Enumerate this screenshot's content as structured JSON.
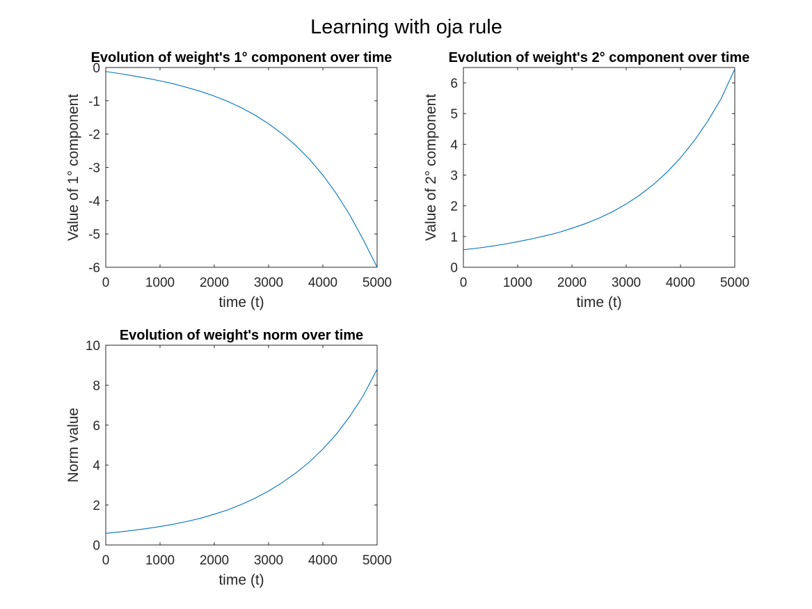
{
  "figure_title": "Learning with oja rule",
  "chart_data": [
    {
      "type": "line",
      "title": "Evolution of weight's 1° component over time",
      "xlabel": "time (t)",
      "ylabel": "Value of 1° component",
      "xlim": [
        0,
        5000
      ],
      "ylim": [
        -6,
        0
      ],
      "xticks": [
        0,
        1000,
        2000,
        3000,
        4000,
        5000
      ],
      "yticks": [
        0,
        -1,
        -2,
        -3,
        -4,
        -5,
        -6
      ],
      "grid": false,
      "series": [
        {
          "color": "#0072BD",
          "x": [
            0,
            250,
            500,
            750,
            1000,
            1250,
            1500,
            1750,
            2000,
            2250,
            2500,
            2750,
            3000,
            3250,
            3500,
            3750,
            4000,
            4250,
            4500,
            4750,
            5000
          ],
          "y": [
            -0.12,
            -0.18,
            -0.25,
            -0.32,
            -0.4,
            -0.49,
            -0.6,
            -0.72,
            -0.86,
            -1.02,
            -1.21,
            -1.43,
            -1.69,
            -1.99,
            -2.34,
            -2.75,
            -3.23,
            -3.79,
            -4.44,
            -5.19,
            -6.0
          ]
        }
      ]
    },
    {
      "type": "line",
      "title": "Evolution of weight's 2° component over time",
      "xlabel": "time (t)",
      "ylabel": "Value of 2° component",
      "xlim": [
        0,
        5000
      ],
      "ylim": [
        0,
        6.5
      ],
      "xticks": [
        0,
        1000,
        2000,
        3000,
        4000,
        5000
      ],
      "yticks": [
        0,
        1,
        2,
        3,
        4,
        5,
        6
      ],
      "grid": false,
      "series": [
        {
          "color": "#0072BD",
          "x": [
            0,
            250,
            500,
            750,
            1000,
            1250,
            1500,
            1750,
            2000,
            2250,
            2500,
            2750,
            3000,
            3250,
            3500,
            3750,
            4000,
            4250,
            4500,
            4750,
            5000
          ],
          "y": [
            0.57,
            0.62,
            0.68,
            0.75,
            0.83,
            0.92,
            1.02,
            1.13,
            1.27,
            1.42,
            1.6,
            1.81,
            2.06,
            2.35,
            2.69,
            3.09,
            3.56,
            4.11,
            4.75,
            5.49,
            6.45
          ]
        }
      ]
    },
    {
      "type": "line",
      "title": "Evolution of weight's norm over time",
      "xlabel": "time (t)",
      "ylabel": "Norm value",
      "xlim": [
        0,
        5000
      ],
      "ylim": [
        0,
        10
      ],
      "xticks": [
        0,
        1000,
        2000,
        3000,
        4000,
        5000
      ],
      "yticks": [
        0,
        2,
        4,
        6,
        8,
        10
      ],
      "grid": false,
      "series": [
        {
          "color": "#0072BD",
          "x": [
            0,
            250,
            500,
            750,
            1000,
            1250,
            1500,
            1750,
            2000,
            2250,
            2500,
            2750,
            3000,
            3250,
            3500,
            3750,
            4000,
            4250,
            4500,
            4750,
            5000
          ],
          "y": [
            0.58,
            0.65,
            0.73,
            0.82,
            0.92,
            1.04,
            1.18,
            1.34,
            1.54,
            1.76,
            2.03,
            2.34,
            2.7,
            3.12,
            3.6,
            4.15,
            4.8,
            5.55,
            6.45,
            7.5,
            8.8
          ]
        }
      ]
    }
  ]
}
